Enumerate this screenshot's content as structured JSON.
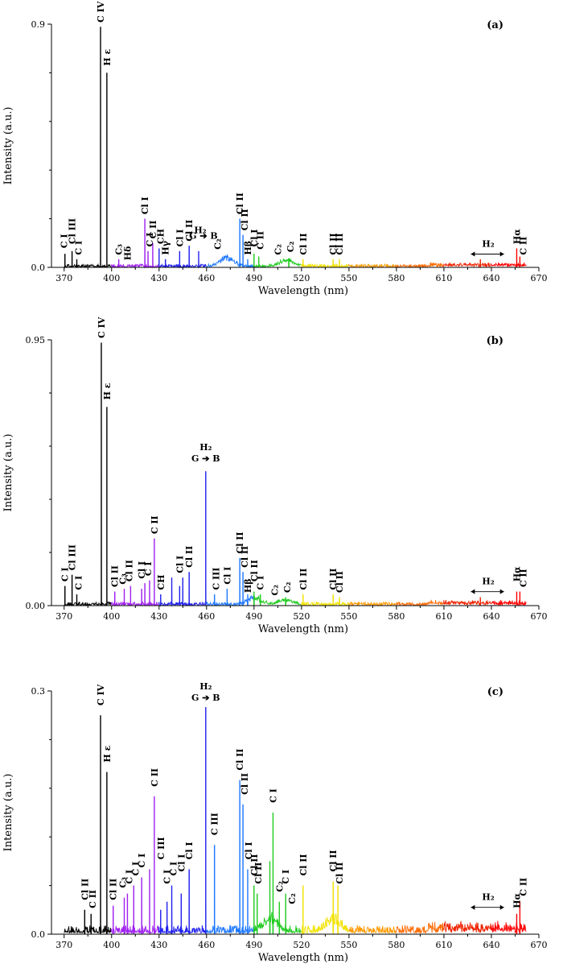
{
  "chart_data": [
    {
      "type": "line",
      "panel_label": "(a)",
      "xlabel": "Wavelength (nm)",
      "ylabel": "Intensity (a.u.)",
      "xlim": [
        362,
        670
      ],
      "ylim": [
        0,
        0.9
      ],
      "y_ticks": [
        "0.0",
        "0.9"
      ],
      "x_ticks": [
        370,
        400,
        430,
        460,
        490,
        520,
        550,
        580,
        610,
        640,
        670
      ],
      "peaks": [
        {
          "x": 370.5,
          "y": 0.05
        },
        {
          "x": 375,
          "y": 0.06
        },
        {
          "x": 378,
          "y": 0.03
        },
        {
          "x": 393,
          "y": 0.89
        },
        {
          "x": 397,
          "y": 0.72
        },
        {
          "x": 404.5,
          "y": 0.03
        },
        {
          "x": 421,
          "y": 0.18
        },
        {
          "x": 423,
          "y": 0.06
        },
        {
          "x": 426,
          "y": 0.09
        },
        {
          "x": 430,
          "y": 0.07
        },
        {
          "x": 434,
          "y": 0.03
        },
        {
          "x": 443,
          "y": 0.06
        },
        {
          "x": 449,
          "y": 0.08
        },
        {
          "x": 455,
          "y": 0.06
        },
        {
          "x": 481,
          "y": 0.18
        },
        {
          "x": 483,
          "y": 0.12
        },
        {
          "x": 486,
          "y": 0.03
        },
        {
          "x": 490,
          "y": 0.05
        },
        {
          "x": 493,
          "y": 0.04
        },
        {
          "x": 512,
          "y": 0.03
        },
        {
          "x": 521,
          "y": 0.03
        },
        {
          "x": 540,
          "y": 0.03
        },
        {
          "x": 544,
          "y": 0.03
        },
        {
          "x": 633,
          "y": 0.03
        },
        {
          "x": 656,
          "y": 0.07
        },
        {
          "x": 658,
          "y": 0.04
        }
      ],
      "bands": [
        {
          "x": 473,
          "y": 0.04
        },
        {
          "x": 511,
          "y": 0.03
        }
      ],
      "noise": 0.012,
      "annotations": [
        {
          "text": "C I",
          "x": 370,
          "y": 0.065
        },
        {
          "text": "Cl III",
          "x": 375,
          "y": 0.08
        },
        {
          "text": "C I",
          "x": 379,
          "y": 0.04
        },
        {
          "text": "C IV",
          "x": 393,
          "y": 0.9
        },
        {
          "text": "H ε",
          "x": 397,
          "y": 0.74
        },
        {
          "text": "C₃",
          "x": 404.5,
          "y": 0.04
        },
        {
          "text": "Hδ",
          "x": 410,
          "y": 0.02
        },
        {
          "text": "Cl I",
          "x": 421,
          "y": 0.19
        },
        {
          "text": "C I",
          "x": 424,
          "y": 0.07
        },
        {
          "text": "C II",
          "x": 426,
          "y": 0.1
        },
        {
          "text": "CH",
          "x": 431,
          "y": 0.08
        },
        {
          "text": "Hγ",
          "x": 434,
          "y": 0.04
        },
        {
          "text": "Cl I",
          "x": 443,
          "y": 0.07
        },
        {
          "text": "Cl II",
          "x": 449,
          "y": 0.09
        },
        {
          "text": "H₂",
          "x": 456,
          "y": 0.12
        },
        {
          "text": "G ➔ B",
          "x": 458,
          "y": 0.1
        },
        {
          "text": "C₂",
          "x": 467,
          "y": 0.06
        },
        {
          "text": "Cl II",
          "x": 481,
          "y": 0.19
        },
        {
          "text": "Cl II",
          "x": 484,
          "y": 0.13
        },
        {
          "text": "Hβ",
          "x": 486,
          "y": 0.04
        },
        {
          "text": "Cl I",
          "x": 490,
          "y": 0.07
        },
        {
          "text": "C II",
          "x": 494,
          "y": 0.06
        },
        {
          "text": "C₂",
          "x": 505,
          "y": 0.04
        },
        {
          "text": "C₂",
          "x": 513,
          "y": 0.05
        },
        {
          "text": "Cl II",
          "x": 521,
          "y": 0.04
        },
        {
          "text": "Cl II",
          "x": 540,
          "y": 0.04
        },
        {
          "text": "Cl II",
          "x": 544,
          "y": 0.04
        },
        {
          "text": "H₂",
          "x": 638,
          "y": 0.07
        },
        {
          "text": "Hα",
          "x": 656,
          "y": 0.08
        },
        {
          "text": "C II",
          "x": 660,
          "y": 0.04
        }
      ]
    },
    {
      "type": "line",
      "panel_label": "(b)",
      "xlabel": "Wavelength (nm)",
      "ylabel": "Intensity (a.u.)",
      "xlim": [
        362,
        670
      ],
      "ylim": [
        0,
        0.95
      ],
      "y_ticks": [
        "0.00",
        "0.95"
      ],
      "x_ticks": [
        370,
        400,
        430,
        460,
        490,
        520,
        550,
        580,
        610,
        640,
        670
      ],
      "peaks": [
        {
          "x": 370.5,
          "y": 0.07
        },
        {
          "x": 375,
          "y": 0.11
        },
        {
          "x": 378,
          "y": 0.04
        },
        {
          "x": 393.5,
          "y": 0.94
        },
        {
          "x": 397,
          "y": 0.71
        },
        {
          "x": 402,
          "y": 0.05
        },
        {
          "x": 408,
          "y": 0.06
        },
        {
          "x": 412,
          "y": 0.07
        },
        {
          "x": 419,
          "y": 0.06
        },
        {
          "x": 421,
          "y": 0.08
        },
        {
          "x": 424,
          "y": 0.09
        },
        {
          "x": 427,
          "y": 0.24
        },
        {
          "x": 431,
          "y": 0.04
        },
        {
          "x": 438,
          "y": 0.1
        },
        {
          "x": 443,
          "y": 0.07
        },
        {
          "x": 445,
          "y": 0.1
        },
        {
          "x": 449,
          "y": 0.12
        },
        {
          "x": 459.5,
          "y": 0.48
        },
        {
          "x": 465,
          "y": 0.04
        },
        {
          "x": 473,
          "y": 0.06
        },
        {
          "x": 481,
          "y": 0.17
        },
        {
          "x": 483,
          "y": 0.12
        },
        {
          "x": 486,
          "y": 0.04
        },
        {
          "x": 490,
          "y": 0.05
        },
        {
          "x": 494,
          "y": 0.04
        },
        {
          "x": 510,
          "y": 0.03
        },
        {
          "x": 521,
          "y": 0.04
        },
        {
          "x": 540,
          "y": 0.04
        },
        {
          "x": 544,
          "y": 0.03
        },
        {
          "x": 633,
          "y": 0.03
        },
        {
          "x": 656,
          "y": 0.05
        },
        {
          "x": 658,
          "y": 0.05
        }
      ],
      "bands": [
        {
          "x": 490,
          "y": 0.03
        },
        {
          "x": 510,
          "y": 0.02
        }
      ],
      "noise": 0.013,
      "annotations": [
        {
          "text": "C I",
          "x": 370.5,
          "y": 0.08
        },
        {
          "text": "Cl III",
          "x": 375,
          "y": 0.12
        },
        {
          "text": "C I",
          "x": 379,
          "y": 0.05
        },
        {
          "text": "C IV",
          "x": 393.5,
          "y": 0.95
        },
        {
          "text": "H ε",
          "x": 397,
          "y": 0.73
        },
        {
          "text": "Cl II",
          "x": 402,
          "y": 0.06
        },
        {
          "text": "C₃",
          "x": 407,
          "y": 0.07
        },
        {
          "text": "Cl II",
          "x": 411,
          "y": 0.08
        },
        {
          "text": "Cl I",
          "x": 419,
          "y": 0.09
        },
        {
          "text": "C I",
          "x": 423,
          "y": 0.1
        },
        {
          "text": "C II",
          "x": 427,
          "y": 0.25
        },
        {
          "text": "CH",
          "x": 431,
          "y": 0.05
        },
        {
          "text": "Cl I",
          "x": 443,
          "y": 0.11
        },
        {
          "text": "Cl II",
          "x": 449,
          "y": 0.13
        },
        {
          "text": "H₂",
          "x": 459.5,
          "y": 0.55
        },
        {
          "text": "G ➔ B",
          "x": 459.5,
          "y": 0.51
        },
        {
          "text": "C III",
          "x": 466,
          "y": 0.05
        },
        {
          "text": "Cl I",
          "x": 473,
          "y": 0.07
        },
        {
          "text": "Cl II",
          "x": 481,
          "y": 0.18
        },
        {
          "text": "Cl II",
          "x": 484,
          "y": 0.13
        },
        {
          "text": "Hβ",
          "x": 486,
          "y": 0.04
        },
        {
          "text": "Cl II",
          "x": 490,
          "y": 0.08
        },
        {
          "text": "C I",
          "x": 494,
          "y": 0.05
        },
        {
          "text": "C₂",
          "x": 503,
          "y": 0.03
        },
        {
          "text": "C₂",
          "x": 511,
          "y": 0.04
        },
        {
          "text": "Cl II",
          "x": 521,
          "y": 0.05
        },
        {
          "text": "Cl II",
          "x": 540,
          "y": 0.05
        },
        {
          "text": "Cl II",
          "x": 544,
          "y": 0.04
        },
        {
          "text": "H₂",
          "x": 638,
          "y": 0.07
        },
        {
          "text": "Hα",
          "x": 656,
          "y": 0.08
        },
        {
          "text": "C II",
          "x": 660,
          "y": 0.06
        }
      ]
    },
    {
      "type": "line",
      "panel_label": "(c)",
      "xlabel": "Wavelength (nm)",
      "ylabel": "Intensity (a.u.)",
      "xlim": [
        362,
        670
      ],
      "ylim": [
        0,
        0.3
      ],
      "y_ticks": [
        "0.0",
        "0.3"
      ],
      "x_ticks": [
        370,
        400,
        430,
        460,
        490,
        520,
        550,
        580,
        610,
        640,
        670
      ],
      "peaks": [
        {
          "x": 383,
          "y": 0.03
        },
        {
          "x": 387,
          "y": 0.025
        },
        {
          "x": 393,
          "y": 0.27
        },
        {
          "x": 397,
          "y": 0.2
        },
        {
          "x": 401,
          "y": 0.035
        },
        {
          "x": 408,
          "y": 0.045
        },
        {
          "x": 410,
          "y": 0.05
        },
        {
          "x": 414,
          "y": 0.06
        },
        {
          "x": 419,
          "y": 0.07
        },
        {
          "x": 424,
          "y": 0.08
        },
        {
          "x": 427,
          "y": 0.17
        },
        {
          "x": 431,
          "y": 0.03
        },
        {
          "x": 435,
          "y": 0.04
        },
        {
          "x": 438,
          "y": 0.06
        },
        {
          "x": 444,
          "y": 0.05
        },
        {
          "x": 449,
          "y": 0.08
        },
        {
          "x": 459.5,
          "y": 0.28
        },
        {
          "x": 465,
          "y": 0.11
        },
        {
          "x": 481,
          "y": 0.19
        },
        {
          "x": 483,
          "y": 0.16
        },
        {
          "x": 486,
          "y": 0.08
        },
        {
          "x": 490,
          "y": 0.06
        },
        {
          "x": 492,
          "y": 0.05
        },
        {
          "x": 500,
          "y": 0.09
        },
        {
          "x": 502,
          "y": 0.15
        },
        {
          "x": 506,
          "y": 0.04
        },
        {
          "x": 510,
          "y": 0.05
        },
        {
          "x": 521,
          "y": 0.06
        },
        {
          "x": 540,
          "y": 0.065
        },
        {
          "x": 543,
          "y": 0.06
        },
        {
          "x": 656,
          "y": 0.025
        },
        {
          "x": 658,
          "y": 0.04
        }
      ],
      "bands": [
        {
          "x": 500,
          "y": 0.02
        },
        {
          "x": 540,
          "y": 0.02
        }
      ],
      "noise": 0.011,
      "annotations": [
        {
          "text": "Cl II",
          "x": 383,
          "y": 0.04
        },
        {
          "text": "C II",
          "x": 388,
          "y": 0.03
        },
        {
          "text": "C IV",
          "x": 393,
          "y": 0.28
        },
        {
          "text": "H ε",
          "x": 397,
          "y": 0.21
        },
        {
          "text": "Cl II",
          "x": 401,
          "y": 0.04
        },
        {
          "text": "C₃",
          "x": 407,
          "y": 0.055
        },
        {
          "text": "C I",
          "x": 411,
          "y": 0.06
        },
        {
          "text": "C I",
          "x": 415,
          "y": 0.07
        },
        {
          "text": "C I",
          "x": 419,
          "y": 0.08
        },
        {
          "text": "C II",
          "x": 427,
          "y": 0.18
        },
        {
          "text": "C III",
          "x": 431,
          "y": 0.09
        },
        {
          "text": "C I",
          "x": 435,
          "y": 0.06
        },
        {
          "text": "C I",
          "x": 439,
          "y": 0.07
        },
        {
          "text": "Cl I",
          "x": 444,
          "y": 0.075
        },
        {
          "text": "Cl I",
          "x": 449,
          "y": 0.09
        },
        {
          "text": "H₂",
          "x": 459.5,
          "y": 0.3
        },
        {
          "text": "G ➔ B",
          "x": 459.5,
          "y": 0.286
        },
        {
          "text": "C III",
          "x": 465,
          "y": 0.12
        },
        {
          "text": "Cl II",
          "x": 481,
          "y": 0.2
        },
        {
          "text": "Cl II",
          "x": 484,
          "y": 0.17
        },
        {
          "text": "Cl I",
          "x": 486.5,
          "y": 0.09
        },
        {
          "text": "Cl II",
          "x": 490,
          "y": 0.07
        },
        {
          "text": "Cl II",
          "x": 492.5,
          "y": 0.06
        },
        {
          "text": "C I",
          "x": 502,
          "y": 0.16
        },
        {
          "text": "C₂",
          "x": 506,
          "y": 0.05
        },
        {
          "text": "C I",
          "x": 510,
          "y": 0.06
        },
        {
          "text": "C₂",
          "x": 514,
          "y": 0.035
        },
        {
          "text": "Cl II",
          "x": 521,
          "y": 0.07
        },
        {
          "text": "Cl II",
          "x": 540,
          "y": 0.075
        },
        {
          "text": "Cl II",
          "x": 544,
          "y": 0.06
        },
        {
          "text": "H₂",
          "x": 638,
          "y": 0.04
        },
        {
          "text": "Hα",
          "x": 656,
          "y": 0.03
        },
        {
          "text": "C II",
          "x": 660,
          "y": 0.045
        }
      ]
    }
  ],
  "spectrum_colors": [
    {
      "from": 362,
      "to": 400,
      "color": "#000000"
    },
    {
      "from": 400,
      "to": 430,
      "color": "#a020f0"
    },
    {
      "from": 430,
      "to": 460,
      "color": "#2222ee"
    },
    {
      "from": 460,
      "to": 490,
      "color": "#1e78ff"
    },
    {
      "from": 490,
      "to": 520,
      "color": "#22cc22"
    },
    {
      "from": 520,
      "to": 550,
      "color": "#f2e200"
    },
    {
      "from": 550,
      "to": 580,
      "color": "#ff9a00"
    },
    {
      "from": 580,
      "to": 610,
      "color": "#ff6a00"
    },
    {
      "from": 610,
      "to": 640,
      "color": "#ee2200"
    },
    {
      "from": 640,
      "to": 670,
      "color": "#ff0000"
    }
  ]
}
